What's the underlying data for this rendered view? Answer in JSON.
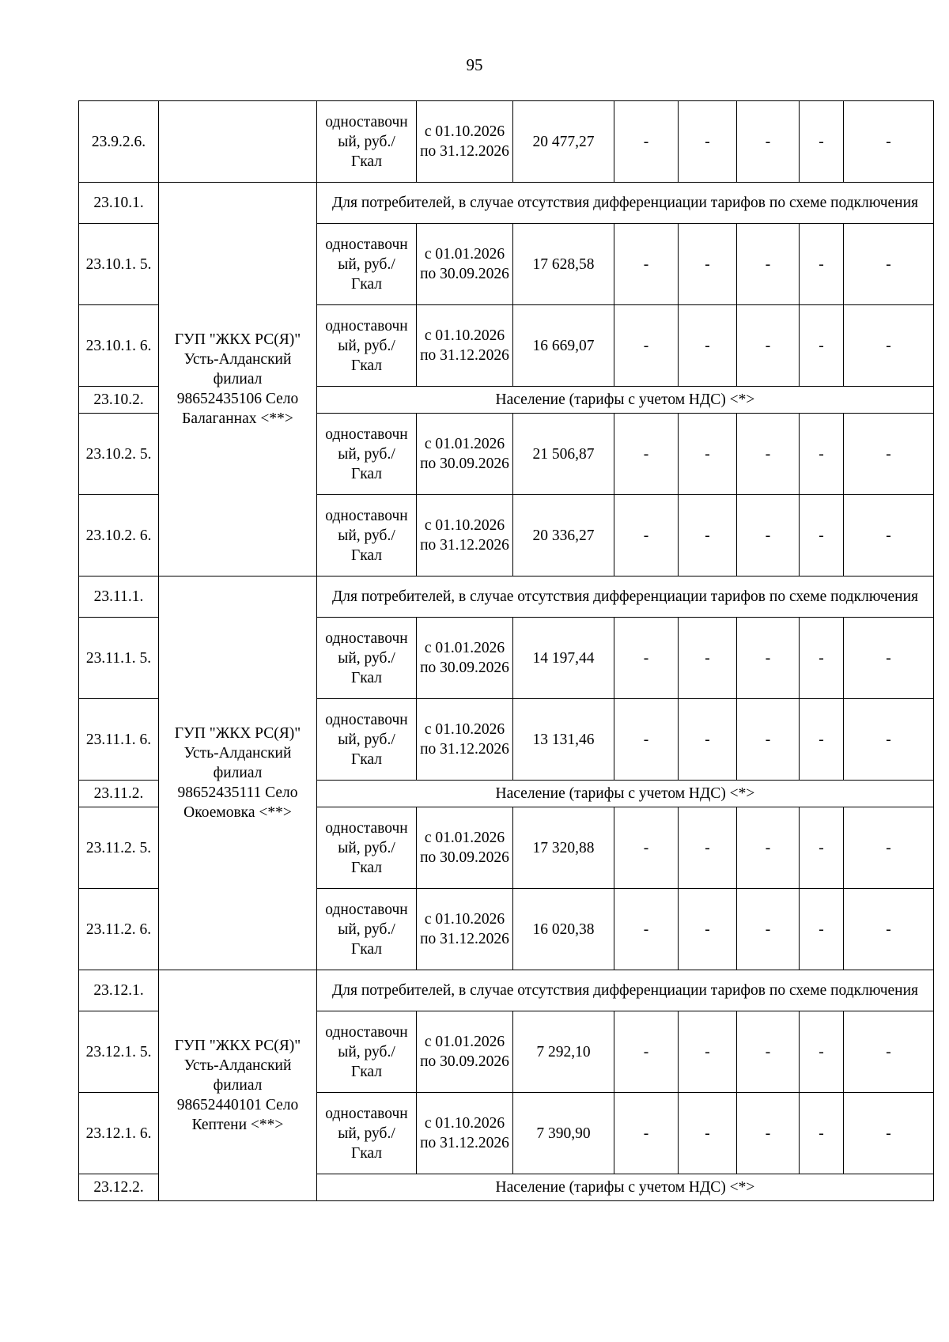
{
  "page_number": "95",
  "groups": [
    {
      "org": "",
      "rows": [
        {
          "kind": "tariff",
          "id": "23.9.2.6.",
          "type": "одноставочный, руб./Гкал",
          "period": "с 01.10.2026 по 31.12.2026",
          "value": "20 477,27",
          "dashes": [
            "-",
            "-",
            "-",
            "-",
            "-"
          ]
        }
      ]
    },
    {
      "org": "ГУП \"ЖКХ РС(Я)\" Усть-Алданский филиал 98652435106 Село Балаганнах <**>",
      "rows": [
        {
          "kind": "header2",
          "id": "23.10.1.",
          "text": "Для потребителей, в случае отсутствия дифференциации тарифов по схеме подключения"
        },
        {
          "kind": "tariff",
          "id": "23.10.1. 5.",
          "type": "одноставочный, руб./Гкал",
          "period": "с 01.01.2026 по 30.09.2026",
          "value": "17 628,58",
          "dashes": [
            "-",
            "-",
            "-",
            "-",
            "-"
          ]
        },
        {
          "kind": "tariff",
          "id": "23.10.1. 6.",
          "type": "одноставочный, руб./Гкал",
          "period": "с 01.10.2026 по 31.12.2026",
          "value": "16 669,07",
          "dashes": [
            "-",
            "-",
            "-",
            "-",
            "-"
          ]
        },
        {
          "kind": "header1",
          "id": "23.10.2.",
          "text": "Население (тарифы с учетом НДС) <*>"
        },
        {
          "kind": "tariff",
          "id": "23.10.2. 5.",
          "type": "одноставочный, руб./Гкал",
          "period": "с 01.01.2026 по 30.09.2026",
          "value": "21 506,87",
          "dashes": [
            "-",
            "-",
            "-",
            "-",
            "-"
          ]
        },
        {
          "kind": "tariff",
          "id": "23.10.2. 6.",
          "type": "одноставочный, руб./Гкал",
          "period": "с 01.10.2026 по 31.12.2026",
          "value": "20 336,27",
          "dashes": [
            "-",
            "-",
            "-",
            "-",
            "-"
          ]
        }
      ]
    },
    {
      "org": "ГУП \"ЖКХ РС(Я)\" Усть-Алданский филиал 98652435111 Село Окоемовка <**>",
      "rows": [
        {
          "kind": "header2",
          "id": "23.11.1.",
          "text": "Для потребителей, в случае отсутствия дифференциации тарифов по схеме подключения"
        },
        {
          "kind": "tariff",
          "id": "23.11.1. 5.",
          "type": "одноставочный, руб./Гкал",
          "period": "с 01.01.2026 по 30.09.2026",
          "value": "14 197,44",
          "dashes": [
            "-",
            "-",
            "-",
            "-",
            "-"
          ]
        },
        {
          "kind": "tariff",
          "id": "23.11.1. 6.",
          "type": "одноставочный, руб./Гкал",
          "period": "с 01.10.2026 по 31.12.2026",
          "value": "13 131,46",
          "dashes": [
            "-",
            "-",
            "-",
            "-",
            "-"
          ]
        },
        {
          "kind": "header1",
          "id": "23.11.2.",
          "text": "Население (тарифы с учетом НДС) <*>"
        },
        {
          "kind": "tariff",
          "id": "23.11.2. 5.",
          "type": "одноставочный, руб./Гкал",
          "period": "с 01.01.2026 по 30.09.2026",
          "value": "17 320,88",
          "dashes": [
            "-",
            "-",
            "-",
            "-",
            "-"
          ]
        },
        {
          "kind": "tariff",
          "id": "23.11.2. 6.",
          "type": "одноставочный, руб./Гкал",
          "period": "с 01.10.2026 по 31.12.2026",
          "value": "16 020,38",
          "dashes": [
            "-",
            "-",
            "-",
            "-",
            "-"
          ]
        }
      ]
    },
    {
      "org": "ГУП \"ЖКХ РС(Я)\" Усть-Алданский филиал 98652440101 Село Кептени <**>",
      "rows": [
        {
          "kind": "header2",
          "id": "23.12.1.",
          "text": "Для потребителей, в случае отсутствия дифференциации тарифов по схеме подключения"
        },
        {
          "kind": "tariff",
          "id": "23.12.1. 5.",
          "type": "одноставочный, руб./Гкал",
          "period": "с 01.01.2026 по 30.09.2026",
          "value": "7 292,10",
          "dashes": [
            "-",
            "-",
            "-",
            "-",
            "-"
          ]
        },
        {
          "kind": "tariff",
          "id": "23.12.1. 6.",
          "type": "одноставочный, руб./Гкал",
          "period": "с 01.10.2026 по 31.12.2026",
          "value": "7 390,90",
          "dashes": [
            "-",
            "-",
            "-",
            "-",
            "-"
          ]
        },
        {
          "kind": "header1",
          "id": "23.12.2.",
          "text": "Население (тарифы с учетом НДС) <*>"
        }
      ]
    }
  ]
}
